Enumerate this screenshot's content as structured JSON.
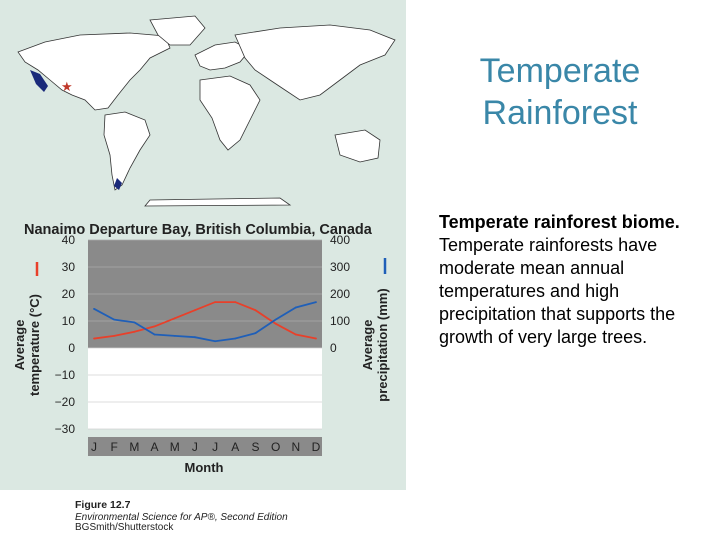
{
  "slide": {
    "title": "Temperate Rainforest",
    "body_bold": "Temperate rainforest biome.",
    "body_text": "Temperate rainforests have moderate mean annual temperatures and high precipitation that supports the growth of very large trees."
  },
  "figure_caption": {
    "line1": "Figure 12.7",
    "line2": "Environmental Science for AP®, Second Edition",
    "line3": "BGSmith/Shutterstock"
  },
  "colors": {
    "temperature": "#e8402a",
    "precipitation": "#1f5fb8",
    "dry_region": "#8a8a8a",
    "wet_region": "#ffffff",
    "map_marker": "#c0392b"
  },
  "chart_data": {
    "type": "line",
    "title": "Nanaimo Departure Bay, British Columbia, Canada",
    "xlabel": "Month",
    "categories": [
      "J",
      "F",
      "M",
      "A",
      "M",
      "J",
      "J",
      "A",
      "S",
      "O",
      "N",
      "D"
    ],
    "left_axis": {
      "label": "Average temperature (°C)",
      "range": [
        -30,
        40
      ],
      "ticks": [
        "40",
        "30",
        "20",
        "10",
        "0",
        "−10",
        "−20",
        "−30"
      ]
    },
    "right_axis": {
      "label": "Average precipitation (mm)",
      "range": [
        0,
        400
      ],
      "ticks": [
        "400",
        "300",
        "200",
        "100",
        "0"
      ]
    },
    "series": [
      {
        "name": "temperature",
        "axis": "left",
        "values": [
          3.5,
          4.5,
          6,
          8,
          11,
          14,
          17,
          17,
          14,
          9,
          5,
          3.5
        ]
      },
      {
        "name": "precipitation",
        "axis": "right",
        "values": [
          145,
          105,
          95,
          50,
          45,
          40,
          25,
          35,
          55,
          105,
          150,
          170
        ]
      }
    ]
  }
}
